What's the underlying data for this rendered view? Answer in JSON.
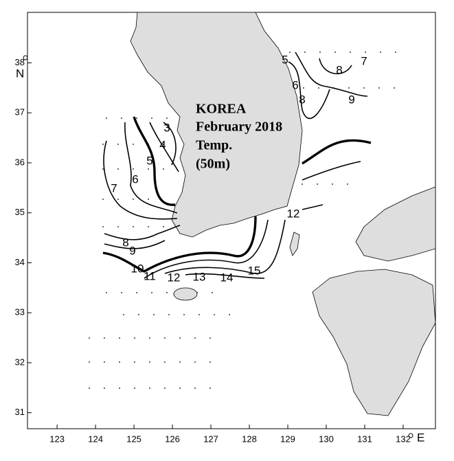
{
  "title": [
    "KOREA",
    "February 2018",
    "Temp.",
    "(50m)"
  ],
  "x_axis": {
    "label": "E",
    "xlim": [
      122.23,
      132.84
    ],
    "ticks": [
      123,
      124,
      125,
      126,
      127,
      128,
      129,
      130,
      131,
      132
    ]
  },
  "y_axis": {
    "label": "N",
    "ylim": [
      30.68,
      39.01
    ],
    "ticks": [
      31,
      32,
      33,
      34,
      35,
      36,
      37,
      38
    ]
  },
  "contour_labels": [
    "3",
    "4",
    "5",
    "6",
    "7",
    "8",
    "9",
    "10",
    "11",
    "12",
    "13",
    "14",
    "15",
    "12",
    "5",
    "6",
    "8",
    "8",
    "9",
    "7"
  ]
}
